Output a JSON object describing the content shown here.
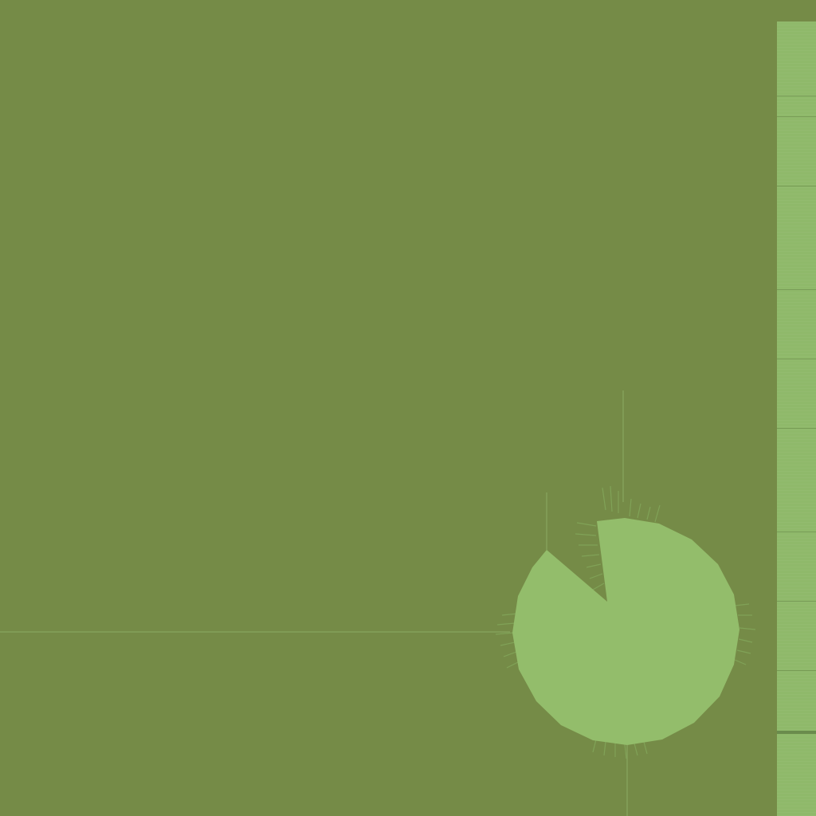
{
  "scene": {
    "description_free": true,
    "background_color": "#758b47",
    "pad_color": "#93bd6b",
    "line_color": "#89aa60",
    "strip_color": "#8fb96a"
  },
  "lily_pad": {
    "icon": "lily-pad-icon"
  },
  "side_strip": {
    "icon": "grass-strip-icon"
  }
}
